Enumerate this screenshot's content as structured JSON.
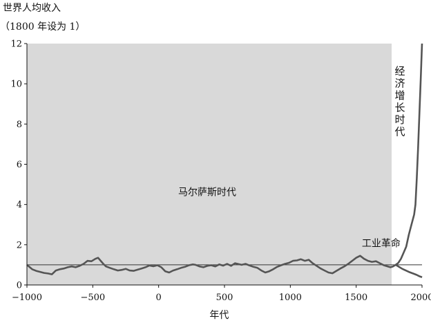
{
  "chart_data": {
    "type": "line",
    "ylabel_lines": [
      "世界人均收入",
      "（1800 年设为 1）"
    ],
    "xlabel": "年代",
    "xlim": [
      -1000,
      2000
    ],
    "ylim": [
      0,
      12
    ],
    "x_ticks": [
      -1000,
      -500,
      0,
      500,
      1000,
      1500,
      2000
    ],
    "x_tick_labels": [
      "−1000",
      "−500",
      "0",
      "500",
      "1000",
      "1500",
      "2000"
    ],
    "y_ticks": [
      0,
      2,
      4,
      6,
      8,
      10,
      12
    ],
    "y_tick_labels": [
      "0",
      "2",
      "4",
      "6",
      "8",
      "10",
      "12"
    ],
    "reference_line_y": 1,
    "regions": [
      {
        "label": "马尔萨斯时代",
        "x_range": [
          -1000,
          1770
        ],
        "fill": "#d9d9d9"
      },
      {
        "label": "经济增长时代",
        "x_range": [
          1770,
          2000
        ],
        "fill": "#ffffff"
      }
    ],
    "annotations": [
      {
        "text": "工业革命",
        "x": 1690,
        "y": 1.9
      }
    ],
    "series": [
      {
        "color": "#555555",
        "x": [
          -1000,
          -960,
          -930,
          -900,
          -870,
          -840,
          -810,
          -780,
          -750,
          -720,
          -690,
          -660,
          -630,
          -600,
          -570,
          -540,
          -510,
          -480,
          -460,
          -440,
          -420,
          -400,
          -370,
          -340,
          -310,
          -280,
          -250,
          -220,
          -190,
          -160,
          -130,
          -100,
          -70,
          -40,
          -10,
          20,
          50,
          80,
          110,
          140,
          170,
          200,
          230,
          260,
          280,
          310,
          340,
          370,
          400,
          430,
          460,
          490,
          520,
          550,
          580,
          600,
          630,
          660,
          690,
          720,
          750,
          780,
          810,
          840,
          870,
          900,
          930,
          960,
          990,
          1020,
          1050,
          1080,
          1110,
          1140,
          1170,
          1200,
          1230,
          1260,
          1290,
          1320,
          1350,
          1380,
          1410,
          1440,
          1470,
          1500,
          1530,
          1560,
          1590,
          1620,
          1650,
          1680,
          1710,
          1740,
          1760,
          1780,
          1800
        ],
        "y": [
          1.0,
          0.78,
          0.7,
          0.65,
          0.6,
          0.57,
          0.53,
          0.72,
          0.78,
          0.82,
          0.88,
          0.92,
          0.88,
          0.95,
          1.05,
          1.2,
          1.18,
          1.3,
          1.35,
          1.2,
          1.05,
          0.92,
          0.85,
          0.78,
          0.72,
          0.75,
          0.8,
          0.72,
          0.7,
          0.76,
          0.82,
          0.88,
          0.97,
          0.93,
          0.98,
          0.88,
          0.68,
          0.62,
          0.72,
          0.78,
          0.85,
          0.9,
          0.98,
          1.02,
          1.0,
          0.92,
          0.88,
          0.95,
          0.98,
          0.92,
          1.02,
          0.96,
          1.05,
          0.95,
          1.08,
          1.05,
          1.0,
          1.05,
          0.97,
          0.9,
          0.85,
          0.72,
          0.62,
          0.68,
          0.78,
          0.9,
          0.98,
          1.05,
          1.1,
          1.2,
          1.22,
          1.28,
          1.2,
          1.25,
          1.08,
          0.95,
          0.82,
          0.72,
          0.62,
          0.58,
          0.7,
          0.82,
          0.92,
          1.05,
          1.2,
          1.35,
          1.45,
          1.3,
          1.2,
          1.15,
          1.18,
          1.08,
          0.98,
          0.92,
          0.88,
          0.92,
          1.0
        ]
      },
      {
        "color": "#555555",
        "x": [
          1800,
          1850,
          1900,
          1940,
          1960,
          1975,
          1985,
          1995,
          2000
        ],
        "y": [
          1.0,
          0.8,
          0.65,
          0.55,
          0.5,
          0.45,
          0.42,
          0.4,
          0.38
        ]
      },
      {
        "color": "#555555",
        "x": [
          1800,
          1820,
          1840,
          1860,
          1880,
          1900,
          1920,
          1940,
          1950,
          1960,
          1970,
          1980,
          1990,
          2000
        ],
        "y": [
          1.0,
          1.1,
          1.3,
          1.6,
          1.9,
          2.5,
          3.0,
          3.5,
          4.0,
          5.3,
          6.8,
          8.5,
          10.2,
          12.0
        ]
      }
    ]
  }
}
